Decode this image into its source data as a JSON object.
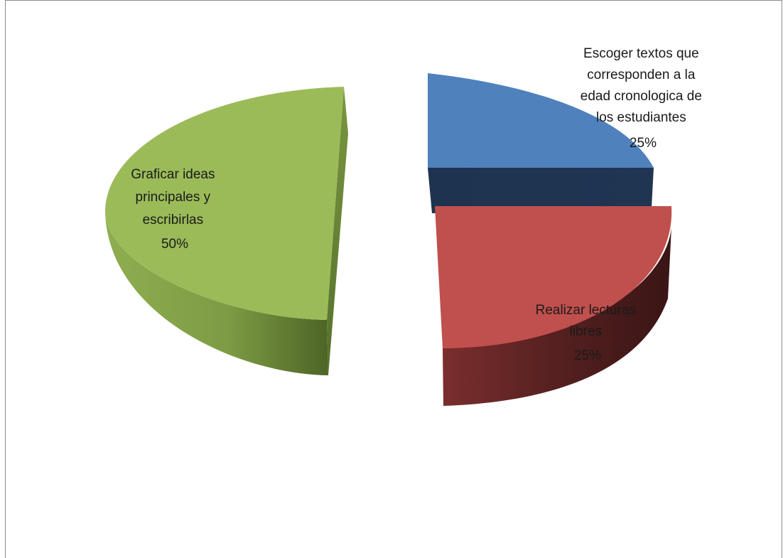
{
  "chart_data": {
    "type": "pie",
    "style": "3d-exploded",
    "title": "",
    "legend": "none",
    "slices": [
      {
        "label_lines": [
          "Escoger textos que",
          "corresponden a la",
          "edad cronologica de",
          "los estudiantes"
        ],
        "value": 25,
        "percent_label": "25%",
        "color": "#4f81bd"
      },
      {
        "label_lines": [
          "Realizar lecturas",
          "libres"
        ],
        "value": 25,
        "percent_label": "25%",
        "color": "#c0504d"
      },
      {
        "label_lines": [
          "Graficar ideas",
          "principales y",
          "escribirlas"
        ],
        "value": 50,
        "percent_label": "50%",
        "color": "#9bbb59"
      }
    ]
  }
}
